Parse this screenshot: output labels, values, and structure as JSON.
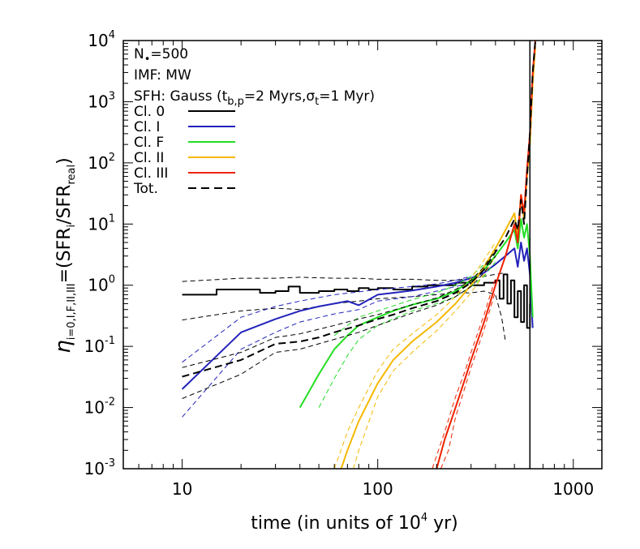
{
  "chart_data": {
    "type": "line",
    "xlabel_text": "time (in units of 10",
    "xlabel_exp": "4",
    "xlabel_tail": " yr)",
    "ylabel_parts": {
      "eta": "η",
      "sub": "i=0,I,F,II,III",
      "mid": "=(SFR",
      "sub_i": "i",
      "slash": "/SFR",
      "sub_real": "real",
      "close": ")"
    },
    "x_scale": "log",
    "y_scale": "log",
    "xlim": [
      5,
      1400
    ],
    "ylim": [
      0.001,
      10000
    ],
    "x_ticks": [
      {
        "value": 10,
        "label": "10"
      },
      {
        "value": 100,
        "label": "100"
      },
      {
        "value": 1000,
        "label": "1000"
      }
    ],
    "y_ticks": [
      {
        "value": 0.001,
        "base": "10",
        "exp": "-3"
      },
      {
        "value": 0.01,
        "base": "10",
        "exp": "-2"
      },
      {
        "value": 0.1,
        "base": "10",
        "exp": "-1"
      },
      {
        "value": 1,
        "base": "10",
        "exp": "0"
      },
      {
        "value": 10,
        "base": "10",
        "exp": "1"
      },
      {
        "value": 100,
        "base": "10",
        "exp": "2"
      },
      {
        "value": 1000,
        "base": "10",
        "exp": "3"
      },
      {
        "value": 10000,
        "base": "10",
        "exp": "4"
      }
    ],
    "annotations": {
      "nstar_a": "N",
      "nstar_sub": "•",
      "nstar_b": "=500",
      "imf": "IMF: MW",
      "sfh_a": "SFH: Gauss (t",
      "sfh_sub1": "b,p",
      "sfh_b": "=2 Myrs,σ",
      "sfh_sub2": "t",
      "sfh_c": "=1 Myr)"
    },
    "legend": [
      {
        "label": "Cl. 0",
        "color": "#000000",
        "dash": false
      },
      {
        "label": "Cl. I",
        "color": "#2222bb",
        "dash": false
      },
      {
        "label": "Cl. F",
        "color": "#22dd22",
        "dash": false
      },
      {
        "label": "Cl. II",
        "color": "#f5b800",
        "dash": false
      },
      {
        "label": "Cl. III",
        "color": "#ee2200",
        "dash": false
      },
      {
        "label": "Tot.",
        "color": "#000000",
        "dash": true
      }
    ],
    "vline_x": 600,
    "series": [
      {
        "name": "Cl. 0",
        "color": "#000000",
        "width": 2,
        "step": true,
        "x": [
          10,
          15,
          20,
          25,
          30,
          35,
          40,
          50,
          60,
          70,
          80,
          90,
          100,
          120,
          150,
          180,
          200,
          250,
          300,
          350,
          400,
          420,
          440,
          460,
          480,
          500,
          520,
          540,
          560,
          580,
          600
        ],
        "y": [
          0.7,
          0.85,
          0.85,
          0.75,
          0.8,
          0.95,
          0.75,
          0.8,
          0.85,
          0.8,
          0.9,
          0.85,
          0.9,
          0.85,
          0.95,
          1.0,
          1.0,
          1.1,
          1.0,
          1.1,
          1.2,
          0.6,
          1.5,
          0.5,
          1.2,
          0.3,
          0.8,
          0.25,
          1.0,
          0.2,
          0.5
        ]
      },
      {
        "name": "Cl. 0 err",
        "color": "#000000",
        "width": 1,
        "dash": "6,4",
        "x": [
          10,
          20,
          30,
          40,
          60,
          80,
          100,
          150,
          200,
          250,
          300,
          350,
          400,
          450
        ],
        "y": [
          1.15,
          1.3,
          1.3,
          1.35,
          1.3,
          1.3,
          1.25,
          1.25,
          1.2,
          1.2,
          1.3,
          1.4,
          1.5,
          1.6
        ]
      },
      {
        "name": "Cl. 0 err low",
        "color": "#000000",
        "width": 1,
        "dash": "6,4",
        "x": [
          10,
          20,
          30,
          40,
          60,
          80,
          100,
          150,
          200,
          250,
          300,
          350,
          400,
          430,
          450
        ],
        "y": [
          0.27,
          0.38,
          0.42,
          0.4,
          0.5,
          0.55,
          0.6,
          0.65,
          0.7,
          0.75,
          0.75,
          0.8,
          0.7,
          0.3,
          0.12
        ]
      },
      {
        "name": "Cl. I",
        "color": "#2222bb",
        "width": 2,
        "x": [
          10,
          20,
          30,
          40,
          50,
          60,
          70,
          80,
          100,
          120,
          150,
          200,
          250,
          300,
          350,
          400,
          450,
          500,
          520,
          540,
          560,
          580,
          600,
          620
        ],
        "y": [
          0.02,
          0.17,
          0.28,
          0.38,
          0.45,
          0.5,
          0.55,
          0.47,
          0.7,
          0.75,
          0.82,
          0.95,
          1.1,
          1.3,
          1.6,
          2.2,
          3,
          4,
          2,
          5,
          2.5,
          4,
          1.5,
          0.2
        ]
      },
      {
        "name": "Cl. I err hi",
        "color": "#2222bb",
        "width": 1,
        "dash": "6,4",
        "x": [
          10,
          20,
          30,
          40,
          60,
          80,
          100,
          150,
          200,
          250,
          300
        ],
        "y": [
          0.055,
          0.3,
          0.45,
          0.55,
          0.7,
          0.78,
          0.85,
          0.95,
          1.05,
          1.2,
          1.4
        ]
      },
      {
        "name": "Cl. I err lo",
        "color": "#2222bb",
        "width": 1,
        "dash": "6,4",
        "x": [
          10,
          20,
          30,
          40,
          60,
          80,
          100,
          150,
          200,
          250,
          300
        ],
        "y": [
          0.007,
          0.09,
          0.17,
          0.25,
          0.34,
          0.4,
          0.55,
          0.65,
          0.8,
          0.95,
          1.1
        ]
      },
      {
        "name": "Cl. F",
        "color": "#22dd22",
        "width": 2,
        "x": [
          40,
          50,
          60,
          70,
          80,
          100,
          120,
          150,
          200,
          250,
          300,
          350,
          400,
          450,
          500,
          520,
          540,
          560,
          580,
          600,
          620
        ],
        "y": [
          0.01,
          0.035,
          0.09,
          0.15,
          0.22,
          0.3,
          0.38,
          0.48,
          0.6,
          0.8,
          1.2,
          1.8,
          3,
          5,
          8,
          4,
          12,
          6,
          10,
          3,
          0.3
        ]
      },
      {
        "name": "Cl. F err hi",
        "color": "#22dd22",
        "width": 1,
        "dash": "6,4",
        "x": [
          60,
          70,
          80,
          100,
          150,
          200,
          250,
          300,
          350,
          400
        ],
        "y": [
          0.15,
          0.22,
          0.3,
          0.38,
          0.58,
          0.75,
          1.0,
          1.4,
          2.2,
          3.5
        ]
      },
      {
        "name": "Cl. F err lo",
        "color": "#22dd22",
        "width": 1,
        "dash": "6,4",
        "x": [
          50,
          60,
          70,
          80,
          100,
          150,
          200,
          250,
          300,
          350,
          400
        ],
        "y": [
          0.01,
          0.03,
          0.07,
          0.13,
          0.22,
          0.38,
          0.5,
          0.65,
          0.95,
          1.4,
          2.4
        ]
      },
      {
        "name": "Cl. II",
        "color": "#f5b800",
        "width": 2,
        "x": [
          65,
          70,
          80,
          100,
          120,
          150,
          200,
          250,
          300,
          350,
          400,
          450,
          500,
          520,
          540,
          560,
          580,
          600,
          620,
          640
        ],
        "y": [
          0.001,
          0.002,
          0.006,
          0.025,
          0.06,
          0.12,
          0.25,
          0.5,
          1.0,
          2.0,
          4,
          8,
          15,
          6,
          30,
          12,
          60,
          200,
          2000,
          8000
        ]
      },
      {
        "name": "Cl. II err hi",
        "color": "#f5b800",
        "width": 1,
        "dash": "6,4",
        "x": [
          60,
          70,
          80,
          100,
          120,
          150,
          200,
          250,
          300,
          350,
          400
        ],
        "y": [
          0.001,
          0.004,
          0.01,
          0.04,
          0.09,
          0.16,
          0.33,
          0.65,
          1.3,
          2.6,
          5
        ]
      },
      {
        "name": "Cl. II err lo",
        "color": "#f5b800",
        "width": 1,
        "dash": "6,4",
        "x": [
          75,
          80,
          100,
          120,
          150,
          200,
          250,
          300,
          350,
          400
        ],
        "y": [
          0.001,
          0.002,
          0.015,
          0.04,
          0.08,
          0.18,
          0.38,
          0.75,
          1.5,
          3
        ]
      },
      {
        "name": "Cl. III",
        "color": "#ee2200",
        "width": 2,
        "x": [
          200,
          220,
          250,
          280,
          300,
          350,
          400,
          450,
          500,
          520,
          540,
          560,
          580,
          600,
          620,
          640
        ],
        "y": [
          0.001,
          0.003,
          0.01,
          0.03,
          0.06,
          0.25,
          1.0,
          3,
          10,
          5,
          30,
          15,
          80,
          300,
          3000,
          10000
        ]
      },
      {
        "name": "Cl. III err hi",
        "color": "#ee2200",
        "width": 1,
        "dash": "6,4",
        "x": [
          190,
          220,
          250,
          280,
          300,
          350,
          400
        ],
        "y": [
          0.001,
          0.004,
          0.015,
          0.04,
          0.08,
          0.33,
          1.3
        ]
      },
      {
        "name": "Cl. III err lo",
        "color": "#ee2200",
        "width": 1,
        "dash": "6,4",
        "x": [
          210,
          230,
          250,
          280,
          300,
          350,
          400
        ],
        "y": [
          0.001,
          0.002,
          0.007,
          0.022,
          0.045,
          0.19,
          0.8
        ]
      },
      {
        "name": "Tot.",
        "color": "#000000",
        "width": 2,
        "dash": "9,5",
        "x": [
          10,
          20,
          30,
          40,
          50,
          60,
          80,
          100,
          120,
          150,
          200,
          250,
          300,
          350,
          400,
          450,
          500,
          520,
          540,
          560,
          580,
          600,
          620,
          640
        ],
        "y": [
          0.032,
          0.06,
          0.11,
          0.12,
          0.14,
          0.17,
          0.22,
          0.28,
          0.33,
          0.42,
          0.55,
          0.75,
          1.1,
          1.8,
          3.5,
          6,
          12,
          8,
          25,
          10,
          60,
          300,
          3000,
          10000
        ]
      },
      {
        "name": "Tot. err hi",
        "color": "#000000",
        "width": 1,
        "dash": "6,4",
        "x": [
          10,
          20,
          30,
          40,
          60,
          80,
          100,
          150,
          200,
          250,
          300,
          350,
          400
        ],
        "y": [
          0.045,
          0.08,
          0.14,
          0.16,
          0.22,
          0.28,
          0.33,
          0.48,
          0.62,
          0.85,
          1.2,
          2.0,
          3.8
        ]
      },
      {
        "name": "Tot. err lo",
        "color": "#000000",
        "width": 1,
        "dash": "6,4",
        "x": [
          10,
          20,
          30,
          40,
          60,
          80,
          100,
          150,
          200,
          250,
          300,
          350,
          400
        ],
        "y": [
          0.014,
          0.035,
          0.08,
          0.09,
          0.13,
          0.17,
          0.22,
          0.35,
          0.47,
          0.65,
          0.95,
          1.6,
          3.0
        ]
      }
    ]
  }
}
